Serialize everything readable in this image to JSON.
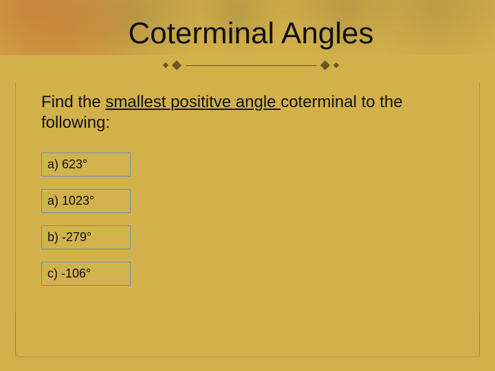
{
  "slide": {
    "title": "Coterminal Angles",
    "prompt_before": "Find the ",
    "prompt_underlined": "smallest posititve angle ",
    "prompt_after": "coterminal to the following:",
    "items": [
      {
        "label": "a) 623°"
      },
      {
        "label": "a) 1023°"
      },
      {
        "label": "b) -279°"
      },
      {
        "label": "c) -106°"
      }
    ]
  },
  "style": {
    "background_color": "#d2b14a",
    "title_fontsize": 44,
    "prompt_fontsize": 24,
    "item_fontsize": 18,
    "item_border_color": "#6e89b8",
    "divider_color": "#6b5520",
    "text_color": "#111111"
  }
}
